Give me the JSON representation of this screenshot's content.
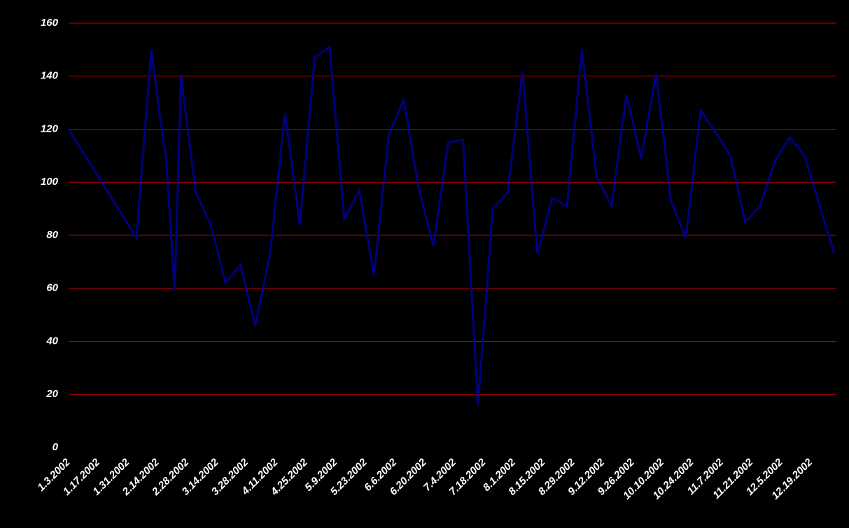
{
  "chart_data": {
    "type": "line",
    "x": [
      "2002-01-03",
      "2002-02-04",
      "2002-02-11",
      "2002-02-15",
      "2002-02-18",
      "2002-02-22",
      "2002-02-25",
      "2002-03-04",
      "2002-03-11",
      "2002-03-18",
      "2002-03-25",
      "2002-04-01",
      "2002-04-08",
      "2002-04-15",
      "2002-04-22",
      "2002-04-29",
      "2002-05-06",
      "2002-05-13",
      "2002-05-20",
      "2002-05-27",
      "2002-06-03",
      "2002-06-10",
      "2002-06-17",
      "2002-06-24",
      "2002-07-01",
      "2002-07-08",
      "2002-07-15",
      "2002-07-22",
      "2002-07-29",
      "2002-08-05",
      "2002-08-12",
      "2002-08-19",
      "2002-08-26",
      "2002-09-02",
      "2002-09-09",
      "2002-09-16",
      "2002-09-23",
      "2002-09-30",
      "2002-10-07",
      "2002-10-14",
      "2002-10-21",
      "2002-10-28",
      "2002-11-04",
      "2002-11-11",
      "2002-11-18",
      "2002-11-25",
      "2002-12-02",
      "2002-12-09",
      "2002-12-16",
      "2002-12-30"
    ],
    "series": [
      {
        "color": "#000080",
        "values": [
          120,
          79,
          150,
          125,
          109,
          59,
          140,
          96,
          84,
          62,
          69,
          46,
          73,
          126,
          84,
          147,
          151,
          86,
          97,
          65,
          118,
          131,
          98,
          76,
          115,
          116,
          16,
          90,
          96,
          142,
          73,
          94,
          91,
          150,
          102,
          91,
          133,
          109,
          141,
          93,
          79,
          127,
          119,
          110,
          85,
          91,
          108,
          117,
          110,
          73
        ]
      }
    ],
    "xlim": [
      "2002-01-03",
      "2002-12-31"
    ],
    "xticks": [
      {
        "value": "2002-01-03",
        "label": "1.3.2002"
      },
      {
        "value": "2002-01-17",
        "label": "1.17.2002"
      },
      {
        "value": "2002-01-31",
        "label": "1.31.2002"
      },
      {
        "value": "2002-02-14",
        "label": "2.14.2002"
      },
      {
        "value": "2002-02-28",
        "label": "2.28.2002"
      },
      {
        "value": "2002-03-14",
        "label": "3.14.2002"
      },
      {
        "value": "2002-03-28",
        "label": "3.28.2002"
      },
      {
        "value": "2002-04-11",
        "label": "4.11.2002"
      },
      {
        "value": "2002-04-25",
        "label": "4.25.2002"
      },
      {
        "value": "2002-05-09",
        "label": "5.9.2002"
      },
      {
        "value": "2002-05-23",
        "label": "5.23.2002"
      },
      {
        "value": "2002-06-06",
        "label": "6.6.2002"
      },
      {
        "value": "2002-06-20",
        "label": "6.20.2002"
      },
      {
        "value": "2002-07-04",
        "label": "7.4.2002"
      },
      {
        "value": "2002-07-18",
        "label": "7.18.2002"
      },
      {
        "value": "2002-08-01",
        "label": "8.1.2002"
      },
      {
        "value": "2002-08-15",
        "label": "8.15.2002"
      },
      {
        "value": "2002-08-29",
        "label": "8.29.2002"
      },
      {
        "value": "2002-09-12",
        "label": "9.12.2002"
      },
      {
        "value": "2002-09-26",
        "label": "9.26.2002"
      },
      {
        "value": "2002-10-10",
        "label": "10.10.2002"
      },
      {
        "value": "2002-10-24",
        "label": "10.24.2002"
      },
      {
        "value": "2002-11-07",
        "label": "11.7.2002"
      },
      {
        "value": "2002-11-21",
        "label": "11.21.2002"
      },
      {
        "value": "2002-12-05",
        "label": "12.5.2002"
      },
      {
        "value": "2002-12-19",
        "label": "12.19.2002"
      }
    ],
    "ylim": [
      0,
      160
    ],
    "yticks": [
      0,
      20,
      40,
      60,
      80,
      100,
      120,
      140,
      160
    ],
    "grid": true,
    "grid_color": "#c00000",
    "background": "#000000"
  }
}
